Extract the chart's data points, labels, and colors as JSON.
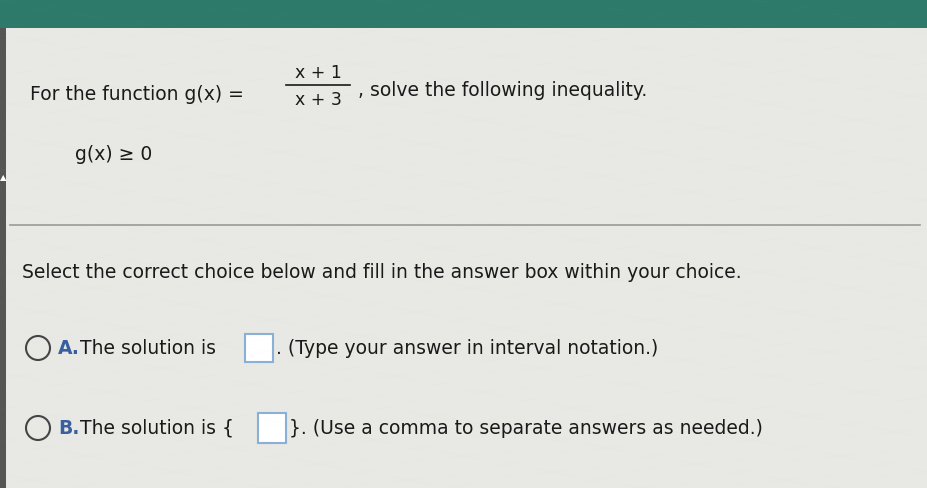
{
  "bg_color": "#e8e8e4",
  "top_bar_color": "#2d7a6a",
  "text_color": "#1a1a1a",
  "blue_color": "#3a5fa0",
  "dark_blue": "#2a3f80",
  "line_color": "#999999",
  "box_border_color": "#8ab0d8",
  "circle_color": "#444444",
  "figsize": [
    9.28,
    4.88
  ],
  "dpi": 100,
  "intro_text": "For the function g(x) = ",
  "numerator": "x + 1",
  "denominator": "x + 3",
  "solve_text": ", solve the following inequality.",
  "inequality_text": "g(x) ≥ 0",
  "select_text": "Select the correct choice below and fill in the answer box within your choice.",
  "option_a_label": "A.",
  "option_a_text": "The solution is",
  "option_a_suffix": ". (Type your answer in interval notation.)",
  "option_b_label": "B.",
  "option_b_text": "The solution is {",
  "option_b_suffix": "}. (Use a comma to separate answers as needed.)"
}
